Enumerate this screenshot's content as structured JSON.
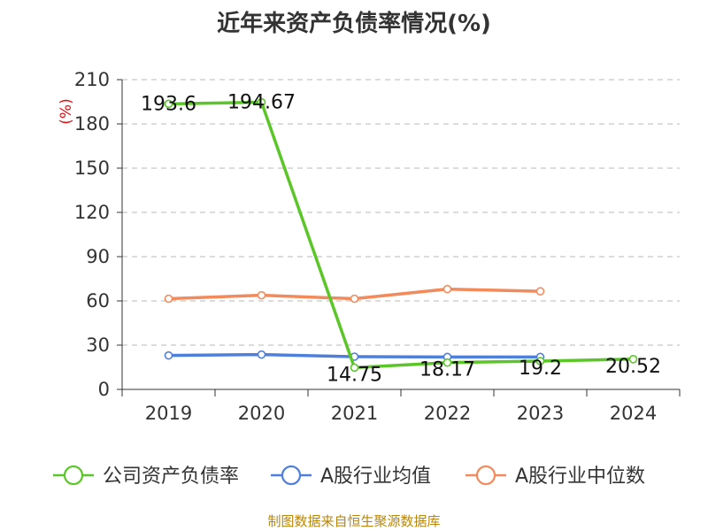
{
  "title": "近年来资产负债率情况(%)",
  "source": "制图数据来自恒生聚源数据库",
  "chart_data": {
    "type": "line",
    "title": "近年来资产负债率情况(%)",
    "ylabel": "(%)",
    "xlabel": "",
    "ylim": [
      0,
      210
    ],
    "yticks": [
      0,
      30,
      60,
      90,
      120,
      150,
      180,
      210
    ],
    "categories": [
      "2019",
      "2020",
      "2021",
      "2022",
      "2023",
      "2024"
    ],
    "grid": true,
    "legend_position": "bottom",
    "series": [
      {
        "name": "公司资产负债率",
        "color": "#5bc628",
        "values": [
          193.6,
          194.67,
          14.75,
          18.17,
          19.2,
          20.52
        ],
        "labels": [
          "193.6",
          "194.67",
          "14.75",
          "18.17",
          "19.2",
          "20.52"
        ]
      },
      {
        "name": "A股行业均值",
        "color": "#4f7fdc",
        "values": [
          23,
          23.6,
          22.2,
          22.0,
          22.0,
          null
        ]
      },
      {
        "name": "A股行业中位数",
        "color": "#f28a5c",
        "values": [
          61.5,
          63.8,
          61.5,
          68.0,
          66.5,
          null
        ]
      }
    ]
  }
}
